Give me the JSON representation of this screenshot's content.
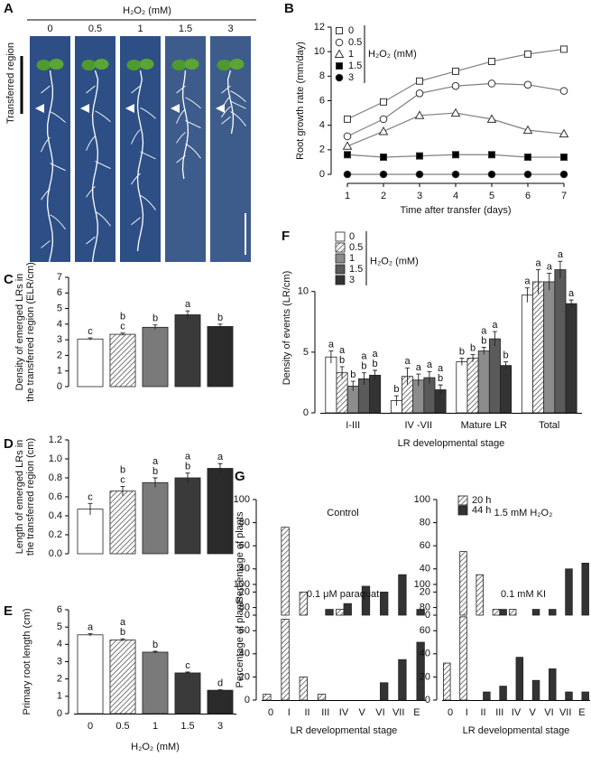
{
  "photo_panel": {
    "label": "A",
    "heading": "H₂O₂ (mM)",
    "columns": [
      "0",
      "0.5",
      "1",
      "1.5",
      "3"
    ],
    "side_label": "Transferred region"
  },
  "chart_data": [
    {
      "type": "line",
      "panel_label": "B",
      "x": [
        1,
        2,
        3,
        4,
        5,
        6,
        7
      ],
      "xlim": [
        0.7,
        7.3
      ],
      "xticks": [
        1,
        2,
        3,
        4,
        5,
        6,
        7
      ],
      "ylim": [
        0,
        12
      ],
      "yticks": [
        0,
        2,
        4,
        6,
        8,
        10,
        12
      ],
      "xlabel": "Time after transfer (days)",
      "ylabel": "Root growth rate (mm/day)",
      "legend_title": "H₂O₂ (mM)",
      "series": [
        {
          "name": "0",
          "color": "#808080",
          "marker": "square",
          "filled": false,
          "values": [
            4.5,
            5.9,
            7.6,
            8.4,
            9.2,
            9.8,
            10.2
          ]
        },
        {
          "name": "0.5",
          "color": "#808080",
          "marker": "circle",
          "filled": false,
          "values": [
            3.1,
            4.5,
            6.6,
            7.2,
            7.4,
            7.3,
            6.8
          ]
        },
        {
          "name": "1",
          "color": "#808080",
          "marker": "triangle",
          "filled": false,
          "values": [
            2.3,
            3.5,
            4.8,
            5.0,
            4.5,
            3.6,
            3.3
          ]
        },
        {
          "name": "1.5",
          "color": "#808080",
          "marker": "square",
          "filled": true,
          "values": [
            1.6,
            1.4,
            1.5,
            1.6,
            1.6,
            1.4,
            1.4
          ]
        },
        {
          "name": "3",
          "color": "#808080",
          "marker": "circle",
          "filled": true,
          "values": [
            0,
            0,
            0,
            0,
            0,
            0,
            0
          ]
        }
      ]
    },
    {
      "type": "bar",
      "panel_label": "C",
      "categories": [
        null,
        null,
        null,
        null,
        null
      ],
      "ylim": [
        0,
        7
      ],
      "yticks": [
        0,
        1,
        2,
        3,
        4,
        5,
        6,
        7
      ],
      "ylabel": [
        "Density of emerged LRs in",
        "the transferred region (ELR/cm)"
      ],
      "values": [
        3.05,
        3.35,
        3.8,
        4.6,
        3.85
      ],
      "errors": [
        0.07,
        0.08,
        0.15,
        0.25,
        0.15
      ],
      "colors": [
        "#ffffff",
        "#bdbdbd",
        "#7a7a7a",
        "#3a3a3a",
        "#2a2a2a"
      ],
      "hatched": [
        false,
        true,
        false,
        false,
        false
      ],
      "letters": [
        [
          "c"
        ],
        [
          "b",
          "c"
        ],
        [
          "b"
        ],
        [
          "a"
        ],
        [
          "b"
        ]
      ]
    },
    {
      "type": "bar",
      "panel_label": "D",
      "categories": [
        null,
        null,
        null,
        null,
        null
      ],
      "ylim": [
        0,
        1.2
      ],
      "yticks": [
        {
          "value": 0,
          "label": "0.0"
        },
        0.2,
        0.4,
        0.6,
        0.8,
        {
          "value": 1,
          "label": "1.0"
        },
        1.2
      ],
      "ylabel": [
        "Length of emerged LRs in",
        "the transferred region (cm)"
      ],
      "values": [
        0.47,
        0.66,
        0.75,
        0.8,
        0.9
      ],
      "errors": [
        0.06,
        0.05,
        0.05,
        0.05,
        0.05
      ],
      "colors": [
        "#ffffff",
        "#bdbdbd",
        "#7a7a7a",
        "#3a3a3a",
        "#2a2a2a"
      ],
      "hatched": [
        false,
        true,
        false,
        false,
        false
      ],
      "letters": [
        [
          "c"
        ],
        [
          "b",
          "c"
        ],
        [
          "a",
          "b"
        ],
        [
          "a",
          "b"
        ],
        [
          "a"
        ]
      ]
    },
    {
      "type": "bar",
      "panel_label": "E",
      "categories": [
        "0",
        "0.5",
        "1",
        "1.5",
        "3"
      ],
      "ylim": [
        0,
        6
      ],
      "yticks": [
        0,
        1,
        2,
        3,
        4,
        5,
        6
      ],
      "xlabel": "H₂O₂ (mM)",
      "ylabel": "Primary root length (cm)",
      "values": [
        4.55,
        4.25,
        3.55,
        2.35,
        1.35
      ],
      "errors": [
        0.07,
        0.07,
        0.05,
        0.05,
        0.03
      ],
      "colors": [
        "#ffffff",
        "#bdbdbd",
        "#7a7a7a",
        "#3a3a3a",
        "#2a2a2a"
      ],
      "hatched": [
        false,
        true,
        false,
        false,
        false
      ],
      "letters": [
        [
          "a"
        ],
        [
          "a",
          "b"
        ],
        [
          "b"
        ],
        [
          "c"
        ],
        [
          "d"
        ]
      ]
    },
    {
      "type": "bar",
      "panel_label": "F",
      "categories": [
        "I-III",
        "IV -VII",
        "Mature LR",
        "Total"
      ],
      "ylim": [
        0,
        14
      ],
      "yticks": [
        0,
        5,
        10
      ],
      "xlabel": "LR developmental stage",
      "ylabel": "Density of events (LR/cm)",
      "legend_title": "H₂O₂ (mM)",
      "series": [
        {
          "name": "0",
          "color": "#ffffff",
          "hatched": false,
          "values": [
            4.6,
            1.0,
            4.2,
            9.7
          ],
          "errors": [
            0.5,
            0.4,
            0.3,
            0.6
          ],
          "letters": [
            [
              "a"
            ],
            [
              "b"
            ],
            [
              "b"
            ],
            [
              "a"
            ]
          ]
        },
        {
          "name": "0.5",
          "color": "#bdbdbd",
          "hatched": true,
          "values": [
            3.3,
            3.0,
            4.5,
            10.8
          ],
          "errors": [
            0.5,
            0.7,
            0.3,
            1.0
          ],
          "letters": [
            [
              "a",
              "b"
            ],
            [
              "a"
            ],
            [
              "b"
            ],
            [
              "a"
            ]
          ]
        },
        {
          "name": "1",
          "color": "#8c8c8c",
          "hatched": false,
          "values": [
            2.2,
            2.7,
            5.1,
            10.8
          ],
          "errors": [
            0.4,
            0.5,
            0.3,
            0.7
          ],
          "letters": [
            [
              "b"
            ],
            [
              "a"
            ],
            [
              "a",
              "b"
            ],
            [
              "a"
            ]
          ]
        },
        {
          "name": "1.5",
          "color": "#5a5a5a",
          "hatched": false,
          "values": [
            2.8,
            2.9,
            6.1,
            11.8
          ],
          "errors": [
            0.5,
            0.5,
            0.6,
            0.7
          ],
          "letters": [
            [
              "a",
              "b"
            ],
            [
              "a"
            ],
            [
              "a"
            ],
            [
              "a"
            ]
          ]
        },
        {
          "name": "3",
          "color": "#333333",
          "hatched": false,
          "values": [
            3.1,
            1.9,
            3.9,
            9.0
          ],
          "errors": [
            0.4,
            0.4,
            0.3,
            0.3
          ],
          "letters": [
            [
              "a",
              "b"
            ],
            [
              "a",
              "b"
            ],
            [
              "b"
            ],
            [
              "a"
            ]
          ]
        }
      ]
    },
    {
      "type": "bar",
      "panel_label": "G",
      "title": "Control",
      "categories": [
        null,
        null,
        null,
        null,
        null,
        null,
        null,
        null,
        null
      ],
      "ylim": [
        0,
        100
      ],
      "yticks": [
        0,
        20,
        40,
        60,
        80,
        100
      ],
      "ylabel": "Percentage of plants",
      "series": [
        {
          "name": "20 h",
          "color": "#e0e0e0",
          "hatched": true,
          "values": [
            0,
            76,
            20,
            0,
            5,
            0,
            0,
            0,
            0
          ]
        },
        {
          "name": "44 h",
          "color": "#333333",
          "hatched": false,
          "values": [
            0,
            0,
            0,
            5,
            10,
            25,
            20,
            35,
            5
          ]
        }
      ]
    },
    {
      "type": "bar",
      "title": "1.5 mM H₂O₂",
      "categories": [
        null,
        null,
        null,
        null,
        null,
        null,
        null,
        null,
        null
      ],
      "ylim": [
        0,
        100
      ],
      "yticks": [
        0,
        20,
        40,
        60,
        80,
        100
      ],
      "series": [
        {
          "color": "#e0e0e0",
          "hatched": true,
          "values": [
            0,
            55,
            35,
            5,
            5,
            0,
            0,
            0,
            0
          ]
        },
        {
          "color": "#333333",
          "hatched": false,
          "values": [
            0,
            0,
            0,
            5,
            0,
            5,
            5,
            40,
            45
          ]
        }
      ]
    },
    {
      "type": "bar",
      "title": "0.1 μM paraquat",
      "categories": [
        "0",
        "I",
        "II",
        "III",
        "IV",
        "V",
        "VI",
        "VII",
        "E"
      ],
      "ylim": [
        0,
        100
      ],
      "yticks": [
        0,
        20,
        40,
        60,
        80,
        100
      ],
      "xlabel": "LR developmental stage",
      "ylabel": "Percentage of plants",
      "series": [
        {
          "color": "#e0e0e0",
          "hatched": true,
          "values": [
            5,
            70,
            20,
            5,
            0,
            0,
            0,
            0,
            0
          ]
        },
        {
          "color": "#333333",
          "hatched": false,
          "values": [
            0,
            0,
            0,
            0,
            0,
            0,
            15,
            35,
            50
          ]
        }
      ]
    },
    {
      "type": "bar",
      "title": "0.1 mM KI",
      "categories": [
        "0",
        "I",
        "II",
        "III",
        "IV",
        "V",
        "VI",
        "VII",
        "E"
      ],
      "ylim": [
        0,
        100
      ],
      "yticks": [
        0,
        20,
        40,
        60,
        80,
        100
      ],
      "xlabel": "LR developmental stage",
      "series": [
        {
          "color": "#e0e0e0",
          "hatched": true,
          "values": [
            32,
            72,
            0,
            0,
            0,
            0,
            0,
            0,
            0
          ]
        },
        {
          "color": "#333333",
          "hatched": false,
          "values": [
            0,
            0,
            7,
            12,
            37,
            17,
            27,
            7,
            7
          ]
        }
      ]
    }
  ]
}
